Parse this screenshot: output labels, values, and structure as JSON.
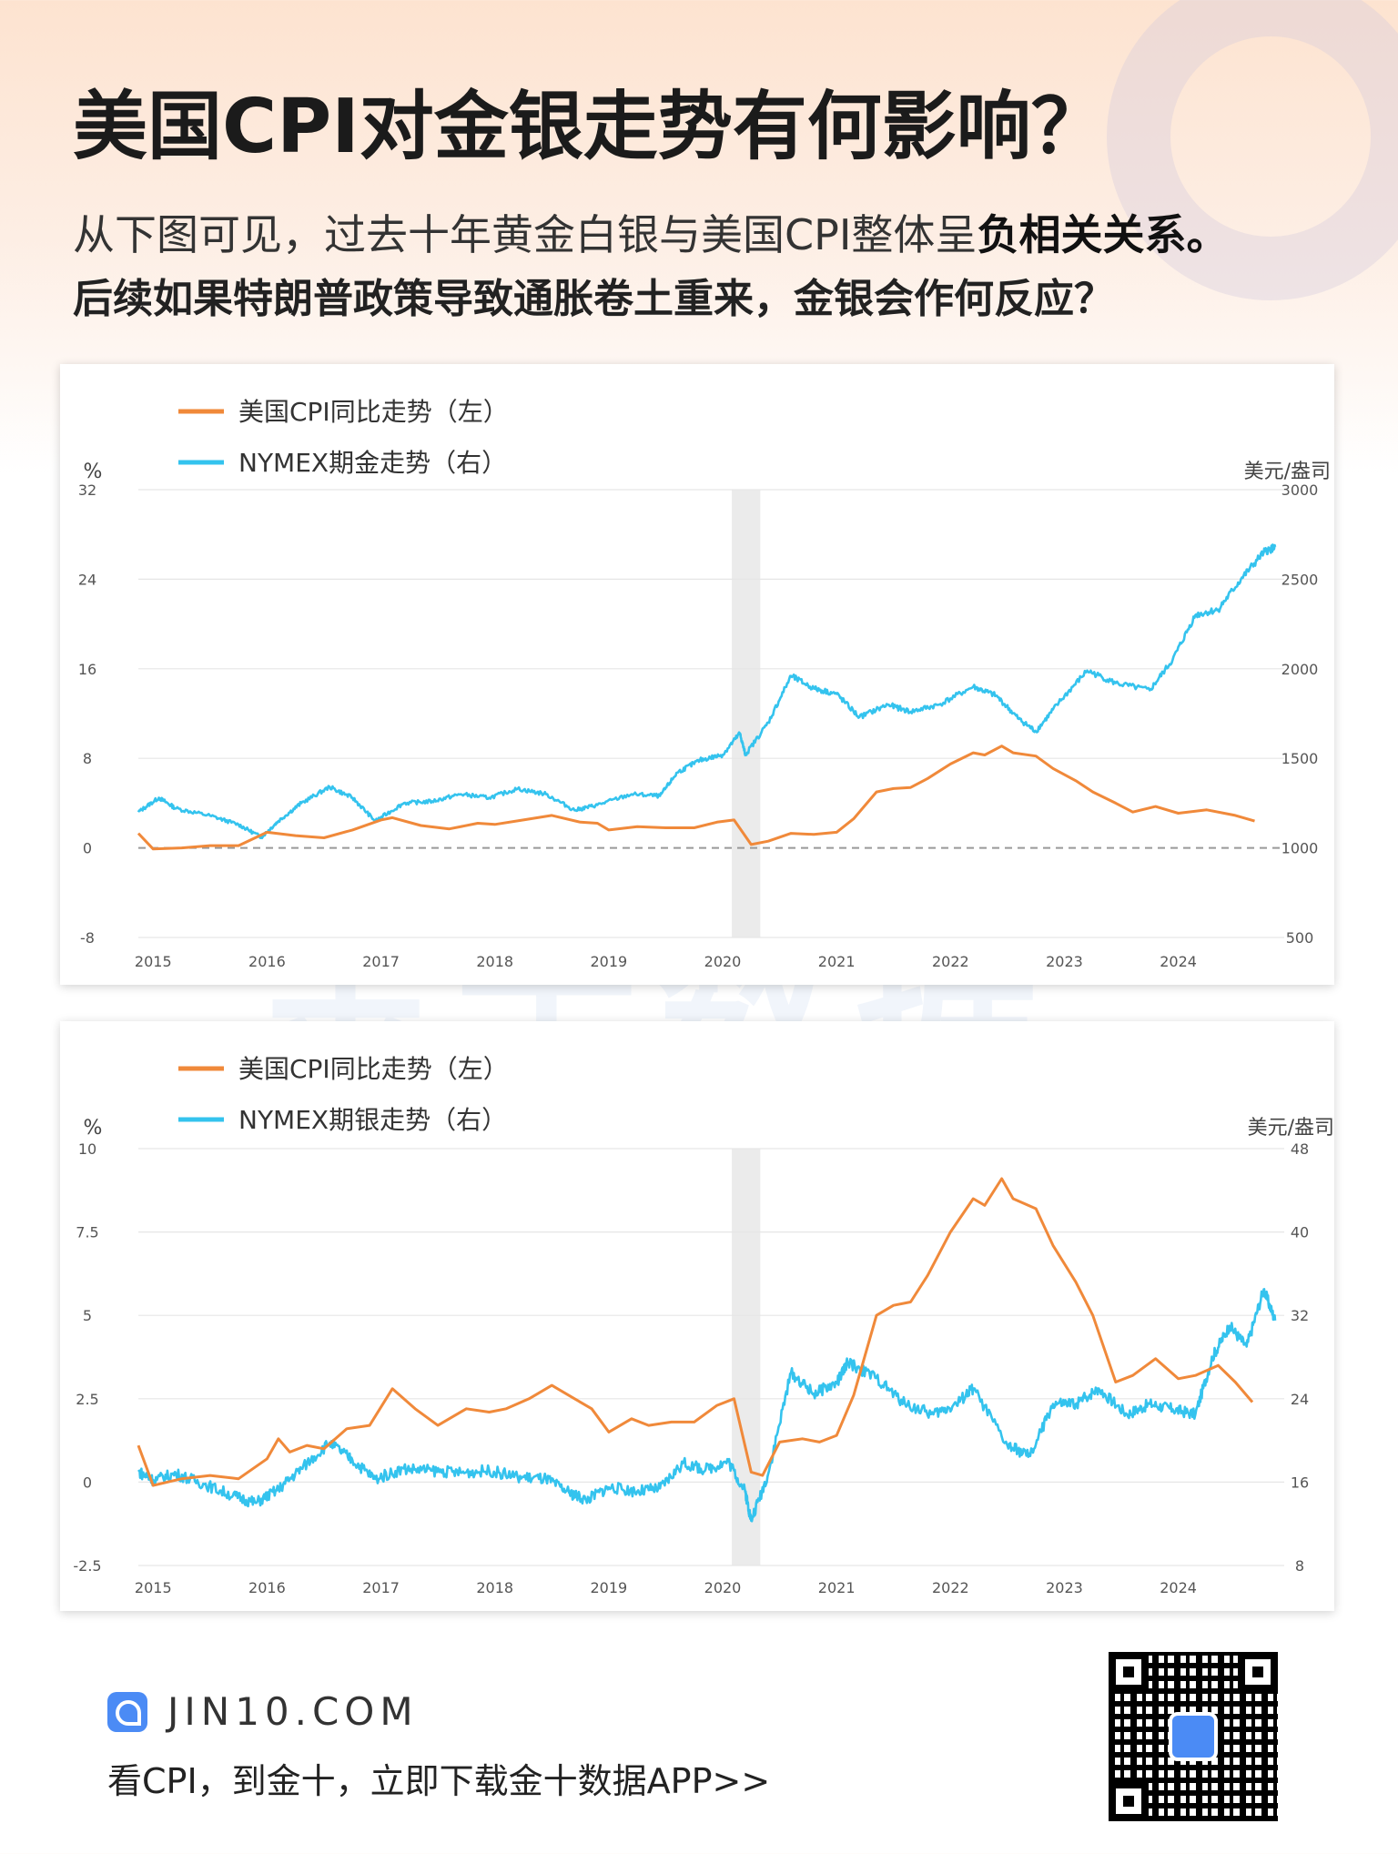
{
  "header": {
    "title": "美国CPI对金银走势有何影响？",
    "subtitle_plain": "从下图可见，过去十年黄金白银与美国CPI整体呈",
    "subtitle_bold": "负相关关系。",
    "question": "后续如果特朗普政策导致通胀卷土重来，金银会作何反应？"
  },
  "watermark": "金十数据",
  "footer": {
    "brand": "JIN10.COM",
    "cta": "看CPI，到金十，立即下载金十数据APP>>"
  },
  "colors": {
    "cpi": "#f0893a",
    "metal": "#34c3ee",
    "grid": "#e6e6e6",
    "zero_line": "#999999",
    "shade": "#ebebeb"
  },
  "chart_data": [
    {
      "type": "line",
      "legend": [
        "美国CPI同比走势（左）",
        "NYMEX期金走势（右）"
      ],
      "left_unit": "%",
      "right_unit": "美元/盎司",
      "x_ticks": [
        "2015",
        "2016",
        "2017",
        "2018",
        "2019",
        "2020",
        "2021",
        "2022",
        "2023",
        "2024"
      ],
      "x_range": [
        2014.87,
        2024.93
      ],
      "left_ticks": [
        "32",
        "24",
        "16",
        "8",
        "0",
        "-8"
      ],
      "left_range": [
        -8,
        32
      ],
      "right_ticks": [
        "3000",
        "2500",
        "2000",
        "1500",
        "1000",
        "500"
      ],
      "right_range": [
        500,
        3000
      ],
      "shaded_region": [
        2020.08,
        2020.33
      ],
      "series": [
        {
          "name": "美国CPI同比走势（左）",
          "axis": "left",
          "x": [
            2014.87,
            2015.0,
            2015.25,
            2015.5,
            2015.75,
            2016.0,
            2016.25,
            2016.5,
            2016.75,
            2017.0,
            2017.1,
            2017.35,
            2017.6,
            2017.85,
            2018.0,
            2018.25,
            2018.5,
            2018.75,
            2018.9,
            2019.0,
            2019.25,
            2019.5,
            2019.75,
            2019.95,
            2020.1,
            2020.25,
            2020.4,
            2020.6,
            2020.8,
            2021.0,
            2021.15,
            2021.35,
            2021.5,
            2021.65,
            2021.8,
            2022.0,
            2022.2,
            2022.3,
            2022.45,
            2022.55,
            2022.75,
            2022.9,
            2023.1,
            2023.25,
            2023.45,
            2023.6,
            2023.8,
            2024.0,
            2024.25,
            2024.5,
            2024.67
          ],
          "y": [
            1.3,
            -0.1,
            0.0,
            0.2,
            0.2,
            1.4,
            1.1,
            0.9,
            1.6,
            2.5,
            2.7,
            2.0,
            1.7,
            2.2,
            2.1,
            2.5,
            2.9,
            2.3,
            2.2,
            1.6,
            1.9,
            1.8,
            1.8,
            2.3,
            2.5,
            0.3,
            0.6,
            1.3,
            1.2,
            1.4,
            2.6,
            5.0,
            5.3,
            5.4,
            6.2,
            7.5,
            8.5,
            8.3,
            9.1,
            8.5,
            8.2,
            7.1,
            6.0,
            5.0,
            4.0,
            3.2,
            3.7,
            3.1,
            3.4,
            2.9,
            2.4
          ]
        },
        {
          "name": "NYMEX期金走势（右）",
          "axis": "right",
          "x": [
            2014.87,
            2015.05,
            2015.2,
            2015.5,
            2015.75,
            2015.95,
            2016.1,
            2016.3,
            2016.55,
            2016.75,
            2016.95,
            2017.2,
            2017.45,
            2017.7,
            2017.95,
            2018.2,
            2018.45,
            2018.7,
            2018.9,
            2019.2,
            2019.45,
            2019.6,
            2019.8,
            2020.0,
            2020.15,
            2020.2,
            2020.4,
            2020.6,
            2020.8,
            2021.0,
            2021.2,
            2021.45,
            2021.65,
            2021.9,
            2022.2,
            2022.4,
            2022.6,
            2022.75,
            2022.95,
            2023.2,
            2023.45,
            2023.75,
            2023.95,
            2024.15,
            2024.35,
            2024.55,
            2024.75,
            2024.85
          ],
          "y": [
            1200,
            1280,
            1220,
            1180,
            1130,
            1060,
            1150,
            1250,
            1340,
            1280,
            1150,
            1250,
            1260,
            1300,
            1280,
            1330,
            1300,
            1210,
            1240,
            1300,
            1290,
            1420,
            1490,
            1520,
            1640,
            1520,
            1700,
            1960,
            1890,
            1860,
            1730,
            1800,
            1760,
            1800,
            1900,
            1850,
            1720,
            1650,
            1810,
            1990,
            1920,
            1880,
            2050,
            2300,
            2330,
            2500,
            2650,
            2680
          ]
        }
      ]
    },
    {
      "type": "line",
      "legend": [
        "美国CPI同比走势（左）",
        "NYMEX期银走势（右）"
      ],
      "left_unit": "%",
      "right_unit": "美元/盎司",
      "x_ticks": [
        "2015",
        "2016",
        "2017",
        "2018",
        "2019",
        "2020",
        "2021",
        "2022",
        "2023",
        "2024"
      ],
      "x_range": [
        2014.87,
        2024.93
      ],
      "left_ticks": [
        "10",
        "7.5",
        "5",
        "2.5",
        "0",
        "-2.5"
      ],
      "left_range": [
        -2.5,
        10
      ],
      "right_ticks": [
        "48",
        "40",
        "32",
        "24",
        "16",
        "8"
      ],
      "right_range": [
        8,
        48
      ],
      "shaded_region": [
        2020.08,
        2020.33
      ],
      "series": [
        {
          "name": "美国CPI同比走势（左）",
          "axis": "left",
          "x": [
            2014.87,
            2015.0,
            2015.25,
            2015.5,
            2015.75,
            2016.0,
            2016.1,
            2016.2,
            2016.35,
            2016.5,
            2016.7,
            2016.9,
            2017.1,
            2017.3,
            2017.5,
            2017.75,
            2017.95,
            2018.1,
            2018.3,
            2018.5,
            2018.7,
            2018.85,
            2019.0,
            2019.2,
            2019.35,
            2019.55,
            2019.75,
            2019.95,
            2020.1,
            2020.25,
            2020.35,
            2020.5,
            2020.7,
            2020.85,
            2021.0,
            2021.15,
            2021.35,
            2021.5,
            2021.65,
            2021.8,
            2022.0,
            2022.2,
            2022.3,
            2022.45,
            2022.55,
            2022.75,
            2022.9,
            2023.1,
            2023.25,
            2023.45,
            2023.6,
            2023.8,
            2024.0,
            2024.15,
            2024.35,
            2024.5,
            2024.65
          ],
          "y": [
            1.1,
            -0.1,
            0.1,
            0.2,
            0.1,
            0.7,
            1.3,
            0.9,
            1.1,
            1.0,
            1.6,
            1.7,
            2.8,
            2.2,
            1.7,
            2.2,
            2.1,
            2.2,
            2.5,
            2.9,
            2.5,
            2.2,
            1.5,
            1.9,
            1.7,
            1.8,
            1.8,
            2.3,
            2.5,
            0.3,
            0.2,
            1.2,
            1.3,
            1.2,
            1.4,
            2.6,
            5.0,
            5.3,
            5.4,
            6.2,
            7.5,
            8.5,
            8.3,
            9.1,
            8.5,
            8.2,
            7.1,
            6.0,
            5.0,
            3.0,
            3.2,
            3.7,
            3.1,
            3.2,
            3.5,
            3.0,
            2.4
          ]
        },
        {
          "name": "NYMEX期银走势（右）",
          "axis": "right",
          "x": [
            2014.87,
            2015.0,
            2015.2,
            2015.45,
            2015.7,
            2015.9,
            2016.1,
            2016.3,
            2016.55,
            2016.75,
            2016.95,
            2017.2,
            2017.45,
            2017.7,
            2017.95,
            2018.2,
            2018.45,
            2018.65,
            2018.8,
            2019.0,
            2019.25,
            2019.45,
            2019.65,
            2019.85,
            2020.05,
            2020.2,
            2020.25,
            2020.4,
            2020.6,
            2020.8,
            2021.0,
            2021.1,
            2021.35,
            2021.6,
            2021.85,
            2022.05,
            2022.2,
            2022.5,
            2022.7,
            2022.9,
            2023.1,
            2023.3,
            2023.55,
            2023.75,
            2023.95,
            2024.15,
            2024.3,
            2024.45,
            2024.6,
            2024.75,
            2024.85
          ],
          "y": [
            17,
            16.2,
            16.8,
            15.8,
            14.7,
            14,
            15.3,
            17.3,
            19.8,
            18.1,
            16.3,
            17.3,
            17.1,
            16.9,
            17.1,
            16.5,
            16.3,
            15.0,
            14.3,
            15.5,
            15.1,
            15.4,
            17.8,
            17.2,
            18.0,
            15.0,
            12.3,
            16.8,
            26.5,
            24.5,
            25.5,
            27.5,
            26.0,
            23.5,
            22.5,
            23.5,
            25.0,
            19.5,
            18.5,
            23.5,
            23.5,
            25.0,
            22.5,
            23.5,
            23.0,
            22.5,
            28.0,
            31.0,
            29.0,
            34.5,
            31.5
          ]
        }
      ]
    }
  ]
}
